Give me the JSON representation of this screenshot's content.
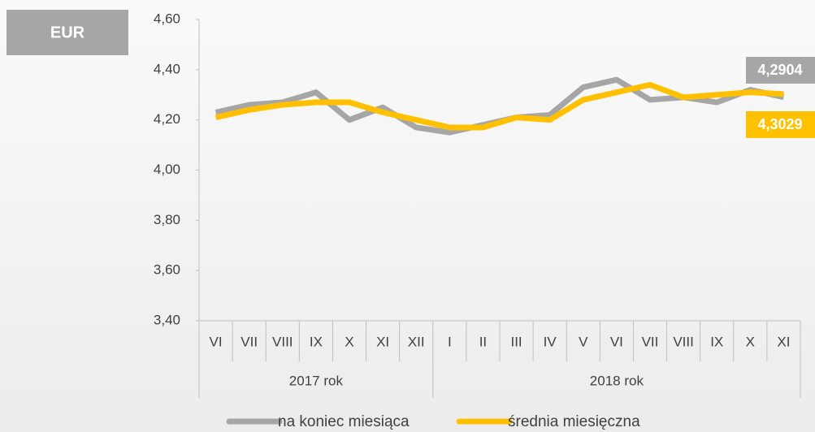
{
  "chart_data": {
    "type": "line",
    "badge": "EUR",
    "category_groups": [
      {
        "label": "2017 rok",
        "categories": [
          "VI",
          "VII",
          "VIII",
          "IX",
          "X",
          "XI",
          "XII"
        ]
      },
      {
        "label": "2018 rok",
        "categories": [
          "I",
          "II",
          "III",
          "IV",
          "V",
          "VI",
          "VII",
          "VIII",
          "IX",
          "X",
          "XI"
        ]
      }
    ],
    "series": [
      {
        "name": "na koniec miesiąca",
        "color": "#a6a6a6",
        "values": [
          4.23,
          4.26,
          4.27,
          4.31,
          4.2,
          4.25,
          4.17,
          4.15,
          4.18,
          4.21,
          4.22,
          4.33,
          4.36,
          4.28,
          4.29,
          4.27,
          4.32,
          4.2904
        ],
        "value_labels": [
          null,
          null,
          null,
          null,
          null,
          null,
          null,
          null,
          null,
          null,
          null,
          null,
          null,
          null,
          null,
          null,
          null,
          "4,2904"
        ]
      },
      {
        "name": "średnia miesięczna",
        "color": "#ffc000",
        "values": [
          4.21,
          4.24,
          4.26,
          4.27,
          4.27,
          4.23,
          4.2,
          4.17,
          4.17,
          4.21,
          4.2,
          4.28,
          4.31,
          4.34,
          4.29,
          4.3,
          4.31,
          4.3029
        ],
        "value_labels": [
          null,
          null,
          null,
          null,
          null,
          null,
          null,
          null,
          null,
          null,
          null,
          null,
          null,
          null,
          null,
          null,
          null,
          "4,3029"
        ]
      }
    ],
    "ylim": [
      3.4,
      4.6
    ],
    "yticks": [
      {
        "value": 3.4,
        "label": "3,40"
      },
      {
        "value": 3.6,
        "label": "3,60"
      },
      {
        "value": 3.8,
        "label": "3,80"
      },
      {
        "value": 4.0,
        "label": "4,00"
      },
      {
        "value": 4.2,
        "label": "4,20"
      },
      {
        "value": 4.4,
        "label": "4,40"
      },
      {
        "value": 4.6,
        "label": "4,60"
      }
    ],
    "grid": false
  }
}
